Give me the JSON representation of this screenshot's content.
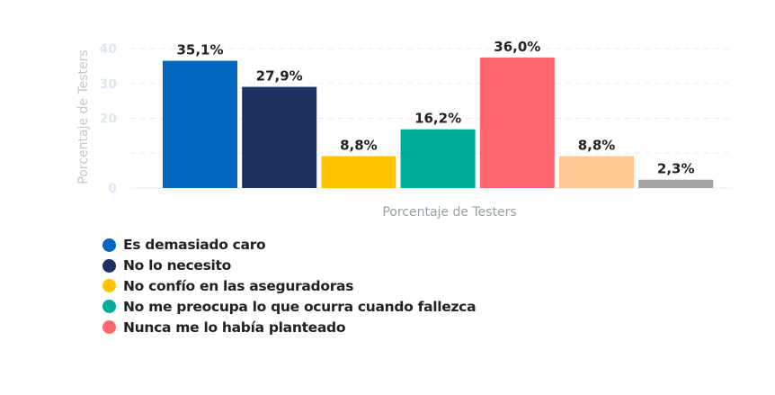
{
  "chart_data": {
    "type": "bar",
    "categories": [
      "Es demasiado caro",
      "No lo necesito",
      "No confío en las aseguradoras",
      "No me preocupa lo que ocurra cuando fallezca",
      "Nunca me lo había planteado",
      "",
      ""
    ],
    "values": [
      35.1,
      27.9,
      8.8,
      16.2,
      36.0,
      8.8,
      2.3
    ],
    "labels": [
      "35,1%",
      "27,9%",
      "8,8%",
      "16,2%",
      "36,0%",
      "8,8%",
      "2,3%"
    ],
    "colors": [
      "#0066bf",
      "#1c3260",
      "#ffc400",
      "#00ac9a",
      "#ff6670",
      "#ffc993",
      "#a3a3a3"
    ],
    "xlabel": "Porcentaje de Testers",
    "ylabel": "Porcentaje de Testers",
    "ylim": [
      0,
      40
    ],
    "yticks": [
      "0",
      "10",
      "20",
      "30",
      "40"
    ],
    "grid": true,
    "legend_position": "bottom-left",
    "legend": [
      {
        "label": "Es demasiado caro",
        "color": "#0066bf"
      },
      {
        "label": "No lo necesito",
        "color": "#1c3260"
      },
      {
        "label": "No confío en las aseguradoras",
        "color": "#ffc400"
      },
      {
        "label": "No me preocupa lo que ocurra cuando fallezca",
        "color": "#00ac9a"
      },
      {
        "label": "Nunca me lo había planteado",
        "color": "#ff6670"
      }
    ]
  }
}
